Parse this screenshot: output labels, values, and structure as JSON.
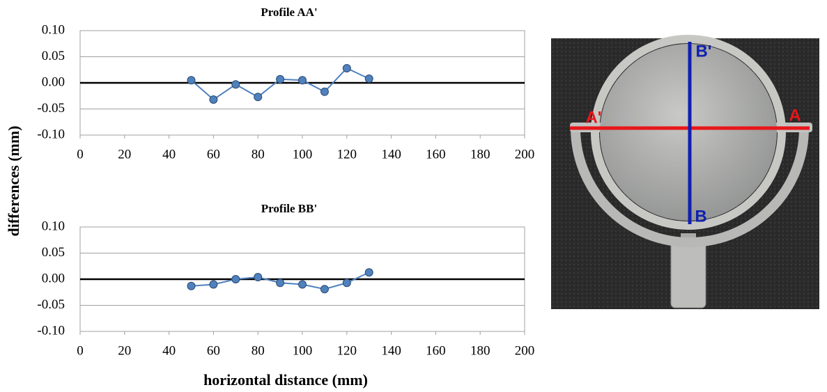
{
  "chart_data": [
    {
      "type": "line",
      "title": "Profile AA'",
      "x": [
        50,
        60,
        70,
        80,
        90,
        100,
        110,
        120,
        130
      ],
      "values": [
        0.005,
        -0.032,
        -0.003,
        -0.027,
        0.007,
        0.005,
        -0.017,
        0.028,
        0.008
      ],
      "color": "#4f81bd",
      "grid": true,
      "xlim": [
        0,
        200
      ],
      "xticks": [
        0,
        20,
        40,
        60,
        80,
        100,
        120,
        140,
        160,
        180,
        200
      ],
      "ylim": [
        -0.1,
        0.1
      ],
      "yticks": [
        {
          "value": -0.1,
          "label": "-0.10"
        },
        {
          "value": -0.05,
          "label": "-0.05"
        },
        {
          "value": 0,
          "label": "0.00"
        },
        {
          "value": 0.05,
          "label": "0.05"
        },
        {
          "value": 0.1,
          "label": "0.10"
        }
      ]
    },
    {
      "type": "line",
      "title": "Profile BB'",
      "x": [
        50,
        60,
        70,
        80,
        90,
        100,
        110,
        120,
        130
      ],
      "values": [
        -0.013,
        -0.01,
        0.0,
        0.004,
        -0.007,
        -0.01,
        -0.019,
        -0.007,
        0.013
      ],
      "color": "#4f81bd",
      "grid": true,
      "xlim": [
        0,
        200
      ],
      "xticks": [
        0,
        20,
        40,
        60,
        80,
        100,
        120,
        140,
        160,
        180,
        200
      ],
      "ylim": [
        -0.1,
        0.1
      ],
      "yticks": [
        {
          "value": -0.1,
          "label": "-0.10"
        },
        {
          "value": -0.05,
          "label": "-0.05"
        },
        {
          "value": 0,
          "label": "0.00"
        },
        {
          "value": 0.05,
          "label": "0.05"
        },
        {
          "value": 0.1,
          "label": "0.10"
        }
      ]
    }
  ],
  "axis_labels": {
    "y": "differences (mm)",
    "x": "horizontal distance (mm)"
  },
  "photo": {
    "labels": [
      "A'",
      "A",
      "B'",
      "B"
    ]
  }
}
